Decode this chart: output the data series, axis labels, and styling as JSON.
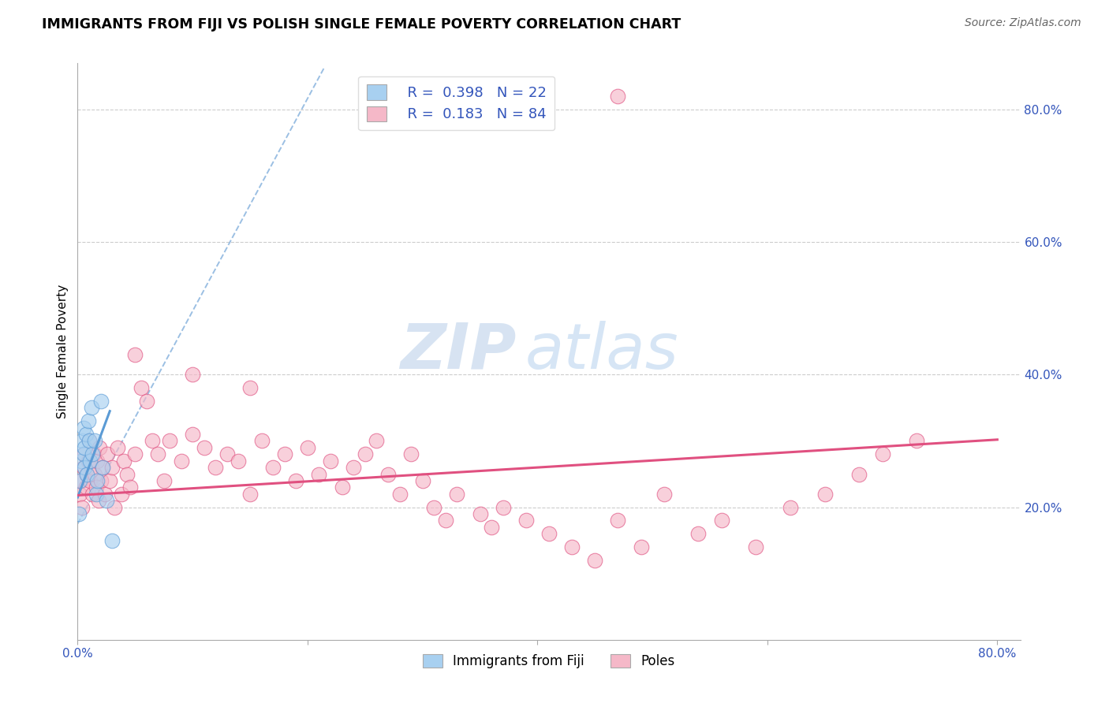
{
  "title": "IMMIGRANTS FROM FIJI VS POLISH SINGLE FEMALE POVERTY CORRELATION CHART",
  "source": "Source: ZipAtlas.com",
  "ylabel": "Single Female Poverty",
  "fiji_color": "#A8D0F0",
  "fiji_color_dark": "#5B9BD5",
  "poles_color": "#F5B8C8",
  "poles_color_dark": "#E05080",
  "fiji_R": 0.398,
  "fiji_N": 22,
  "poles_R": 0.183,
  "poles_N": 84,
  "grid_color": "#CCCCCC",
  "watermark_zip": "ZIP",
  "watermark_atlas": "atlas",
  "xlim": [
    0.0,
    0.82
  ],
  "ylim": [
    0.0,
    0.87
  ],
  "fiji_x": [
    0.001,
    0.002,
    0.003,
    0.004,
    0.005,
    0.005,
    0.006,
    0.006,
    0.007,
    0.008,
    0.009,
    0.01,
    0.011,
    0.012,
    0.013,
    0.015,
    0.016,
    0.017,
    0.02,
    0.022,
    0.025,
    0.03
  ],
  "fiji_y": [
    0.19,
    0.24,
    0.27,
    0.3,
    0.28,
    0.32,
    0.26,
    0.29,
    0.31,
    0.25,
    0.33,
    0.3,
    0.27,
    0.35,
    0.28,
    0.3,
    0.22,
    0.24,
    0.36,
    0.26,
    0.21,
    0.15
  ],
  "poles_x": [
    0.002,
    0.003,
    0.004,
    0.005,
    0.006,
    0.007,
    0.008,
    0.009,
    0.01,
    0.011,
    0.012,
    0.013,
    0.014,
    0.015,
    0.016,
    0.017,
    0.018,
    0.019,
    0.02,
    0.022,
    0.024,
    0.026,
    0.028,
    0.03,
    0.032,
    0.035,
    0.038,
    0.04,
    0.043,
    0.046,
    0.05,
    0.055,
    0.06,
    0.065,
    0.07,
    0.075,
    0.08,
    0.09,
    0.1,
    0.11,
    0.12,
    0.13,
    0.14,
    0.15,
    0.16,
    0.17,
    0.18,
    0.19,
    0.2,
    0.21,
    0.22,
    0.23,
    0.24,
    0.25,
    0.26,
    0.27,
    0.28,
    0.29,
    0.3,
    0.31,
    0.32,
    0.33,
    0.35,
    0.36,
    0.37,
    0.39,
    0.41,
    0.43,
    0.45,
    0.47,
    0.49,
    0.51,
    0.54,
    0.56,
    0.59,
    0.62,
    0.65,
    0.68,
    0.7,
    0.73,
    0.05,
    0.1,
    0.15,
    0.47
  ],
  "poles_y": [
    0.22,
    0.24,
    0.2,
    0.26,
    0.28,
    0.23,
    0.25,
    0.27,
    0.3,
    0.24,
    0.26,
    0.22,
    0.28,
    0.25,
    0.23,
    0.27,
    0.21,
    0.29,
    0.24,
    0.26,
    0.22,
    0.28,
    0.24,
    0.26,
    0.2,
    0.29,
    0.22,
    0.27,
    0.25,
    0.23,
    0.28,
    0.38,
    0.36,
    0.3,
    0.28,
    0.24,
    0.3,
    0.27,
    0.31,
    0.29,
    0.26,
    0.28,
    0.27,
    0.22,
    0.3,
    0.26,
    0.28,
    0.24,
    0.29,
    0.25,
    0.27,
    0.23,
    0.26,
    0.28,
    0.3,
    0.25,
    0.22,
    0.28,
    0.24,
    0.2,
    0.18,
    0.22,
    0.19,
    0.17,
    0.2,
    0.18,
    0.16,
    0.14,
    0.12,
    0.18,
    0.14,
    0.22,
    0.16,
    0.18,
    0.14,
    0.2,
    0.22,
    0.25,
    0.28,
    0.3,
    0.43,
    0.4,
    0.38,
    0.82
  ]
}
